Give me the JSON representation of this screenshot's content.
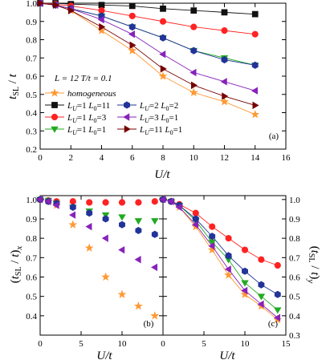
{
  "chart_data": [
    {
      "panel": "a",
      "type": "line",
      "panel_label": "(a)",
      "xlabel": "U/t",
      "ylabel": "t_SL / t",
      "xlim": [
        0,
        16
      ],
      "ylim": [
        0.2,
        1.0
      ],
      "xticks": [
        "0",
        "2",
        "4",
        "6",
        "8",
        "10",
        "12",
        "14",
        "16"
      ],
      "yticks": [
        "0.2",
        "0.3",
        "0.4",
        "0.5",
        "0.6",
        "0.7",
        "0.8",
        "0.9",
        "1.0"
      ],
      "annotation": "L = 12  T/t = 0.1",
      "series": [
        {
          "name": "homogeneous",
          "color": "#ff9933",
          "marker": "star",
          "x": [
            0,
            1,
            2,
            4,
            6,
            8,
            10,
            12,
            14
          ],
          "y": [
            1.0,
            0.99,
            0.96,
            0.85,
            0.74,
            0.6,
            0.51,
            0.46,
            0.39
          ]
        },
        {
          "name": "LU=1 L0=11",
          "color": "#111111",
          "marker": "square",
          "x": [
            0,
            1,
            2,
            4,
            6,
            8,
            10,
            12,
            14
          ],
          "y": [
            1.0,
            1.0,
            0.995,
            0.99,
            0.985,
            0.97,
            0.96,
            0.95,
            0.94
          ]
        },
        {
          "name": "LU=1 L0=3",
          "color": "#ff2222",
          "marker": "circle",
          "x": [
            0,
            1,
            2,
            4,
            6,
            8,
            10,
            12,
            14
          ],
          "y": [
            1.0,
            0.995,
            0.985,
            0.96,
            0.93,
            0.9,
            0.87,
            0.85,
            0.83
          ]
        },
        {
          "name": "LU=1 L0=1",
          "color": "#22aa22",
          "marker": "triangle-down",
          "x": [
            0,
            1,
            2,
            4,
            6,
            8,
            10,
            12,
            14
          ],
          "y": [
            1.0,
            0.99,
            0.97,
            0.93,
            0.87,
            0.81,
            0.74,
            0.7,
            0.66
          ]
        },
        {
          "name": "LU=2 L0=2",
          "color": "#223399",
          "marker": "hexagon",
          "x": [
            0,
            1,
            2,
            4,
            6,
            8,
            10,
            12,
            14
          ],
          "y": [
            1.0,
            0.99,
            0.97,
            0.93,
            0.87,
            0.81,
            0.74,
            0.69,
            0.66
          ]
        },
        {
          "name": "LU=3 L0=1",
          "color": "#8822bb",
          "marker": "triangle-left",
          "x": [
            0,
            1,
            2,
            4,
            6,
            8,
            10,
            12,
            14
          ],
          "y": [
            1.0,
            0.99,
            0.97,
            0.91,
            0.83,
            0.72,
            0.62,
            0.57,
            0.52
          ]
        },
        {
          "name": "LU=11 L0=1",
          "color": "#770000",
          "marker": "triangle-right",
          "x": [
            0,
            1,
            2,
            4,
            6,
            8,
            10,
            12,
            14
          ],
          "y": [
            1.0,
            0.99,
            0.96,
            0.87,
            0.77,
            0.64,
            0.55,
            0.49,
            0.44
          ]
        }
      ]
    },
    {
      "panel": "b",
      "type": "scatter",
      "panel_label": "(b)",
      "xlabel": "U/t",
      "ylabel": "(t_SL / t)_x",
      "xlim": [
        0,
        15
      ],
      "ylim": [
        0.3,
        1.02
      ],
      "xticks": [
        "0",
        "5",
        "10"
      ],
      "yticks": [
        "0.4",
        "0.5",
        "0.6",
        "0.7",
        "0.8",
        "0.9",
        "1.0"
      ],
      "series": [
        {
          "name": "homogeneous",
          "color": "#ff9933",
          "marker": "star",
          "x": [
            0,
            1,
            2,
            4,
            6,
            8,
            10,
            12,
            14
          ],
          "y": [
            1.0,
            0.99,
            0.97,
            0.87,
            0.75,
            0.6,
            0.51,
            0.45,
            0.4
          ]
        },
        {
          "name": "LU=1 L0=3",
          "color": "#ff2222",
          "marker": "circle",
          "x": [
            0,
            1,
            2,
            4,
            6,
            8,
            10,
            12,
            14
          ],
          "y": [
            1.0,
            0.995,
            0.99,
            0.99,
            0.985,
            0.985,
            0.985,
            0.985,
            0.99
          ]
        },
        {
          "name": "LU=1 L0=1",
          "color": "#22aa22",
          "marker": "triangle-down",
          "x": [
            0,
            1,
            2,
            4,
            6,
            8,
            10,
            12,
            14
          ],
          "y": [
            1.0,
            0.995,
            0.98,
            0.96,
            0.94,
            0.92,
            0.91,
            0.89,
            0.89
          ]
        },
        {
          "name": "LU=2 L0=2",
          "color": "#223399",
          "marker": "hexagon",
          "x": [
            0,
            1,
            2,
            4,
            6,
            8,
            10,
            12,
            14
          ],
          "y": [
            1.0,
            0.99,
            0.98,
            0.96,
            0.93,
            0.9,
            0.87,
            0.84,
            0.82
          ]
        },
        {
          "name": "LU=3 L0=1",
          "color": "#8822bb",
          "marker": "triangle-left",
          "x": [
            0,
            1,
            2,
            4,
            6,
            8,
            10,
            12,
            14
          ],
          "y": [
            1.0,
            0.99,
            0.97,
            0.92,
            0.86,
            0.8,
            0.74,
            0.69,
            0.65
          ]
        }
      ]
    },
    {
      "panel": "c",
      "type": "line",
      "panel_label": "(c)",
      "xlabel": "U/t",
      "ylabel": "(t_SL / t)_y",
      "xlim": [
        0,
        15
      ],
      "ylim": [
        0.3,
        1.02
      ],
      "xticks": [
        "0",
        "5",
        "10",
        "15"
      ],
      "yticks": [
        "0.3",
        "0.4",
        "0.5",
        "0.6",
        "0.7",
        "0.8",
        "0.9",
        "1.0"
      ],
      "series": [
        {
          "name": "homogeneous",
          "color": "#ff9933",
          "marker": "star",
          "x": [
            0,
            1,
            2,
            4,
            6,
            8,
            10,
            12,
            14
          ],
          "y": [
            1.0,
            0.99,
            0.96,
            0.86,
            0.74,
            0.61,
            0.51,
            0.45,
            0.38
          ]
        },
        {
          "name": "LU=1 L0=3",
          "color": "#ff2222",
          "marker": "circle",
          "x": [
            0,
            1,
            2,
            4,
            6,
            8,
            10,
            12,
            14
          ],
          "y": [
            1.0,
            0.99,
            0.975,
            0.93,
            0.86,
            0.8,
            0.74,
            0.69,
            0.66
          ]
        },
        {
          "name": "LU=1 L0=1",
          "color": "#22aa22",
          "marker": "triangle-down",
          "x": [
            0,
            1,
            2,
            4,
            6,
            8,
            10,
            12,
            14
          ],
          "y": [
            1.0,
            0.99,
            0.97,
            0.89,
            0.78,
            0.69,
            0.57,
            0.5,
            0.43
          ]
        },
        {
          "name": "LU=2 L0=2",
          "color": "#223399",
          "marker": "hexagon",
          "x": [
            0,
            1,
            2,
            4,
            6,
            8,
            10,
            12,
            14
          ],
          "y": [
            1.0,
            0.99,
            0.97,
            0.9,
            0.81,
            0.71,
            0.63,
            0.56,
            0.51
          ]
        },
        {
          "name": "LU=3 L0=1",
          "color": "#8822bb",
          "marker": "triangle-left",
          "x": [
            0,
            1,
            2,
            4,
            6,
            8,
            10,
            12,
            14
          ],
          "y": [
            1.0,
            0.99,
            0.96,
            0.87,
            0.76,
            0.64,
            0.53,
            0.46,
            0.39
          ]
        }
      ]
    }
  ],
  "legend": {
    "entries": [
      {
        "label": "homogeneous",
        "color": "#ff9933",
        "marker": "star"
      },
      {
        "label": "L_U=1 L_0=11",
        "color": "#111111",
        "marker": "square"
      },
      {
        "label": "L_U=2 L_0=2",
        "color": "#223399",
        "marker": "hexagon"
      },
      {
        "label": "L_U=1 L_0=3",
        "color": "#ff2222",
        "marker": "circle"
      },
      {
        "label": "L_U=3 L_0=1",
        "color": "#8822bb",
        "marker": "triangle-left"
      },
      {
        "label": "L_U=1 L_0=1",
        "color": "#22aa22",
        "marker": "triangle-down"
      },
      {
        "label": "L_U=11 L_0=1",
        "color": "#770000",
        "marker": "triangle-right"
      }
    ]
  }
}
